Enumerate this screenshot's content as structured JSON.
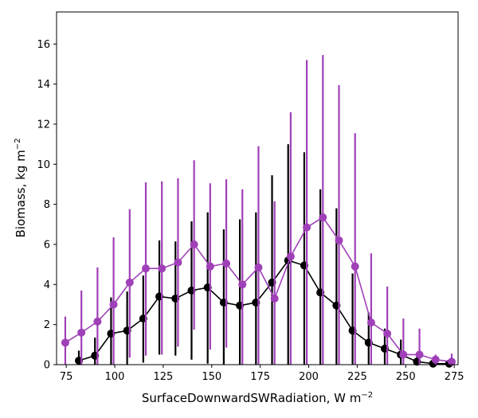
{
  "chart_data": {
    "type": "line",
    "xlabel": "SurfaceDownwardSWRadiation,  W m",
    "xlabel_superscript": "−2",
    "ylabel": "Biomass,  kg m",
    "ylabel_superscript": "−2",
    "xlim": [
      70,
      277
    ],
    "ylim": [
      0,
      17.6
    ],
    "xticks": [
      75,
      100,
      125,
      150,
      175,
      200,
      225,
      250,
      275
    ],
    "yticks": [
      0,
      2,
      4,
      6,
      8,
      10,
      12,
      14,
      16
    ],
    "grid": false,
    "legend": "none",
    "series": [
      {
        "color": "#000000",
        "marker": "circle",
        "x": [
          81.5,
          89.8,
          98.1,
          106.4,
          114.7,
          123.0,
          131.3,
          139.6,
          147.9,
          156.2,
          164.5,
          172.8,
          181.1,
          189.4,
          197.7,
          206.0,
          214.3,
          222.6,
          230.9,
          239.2,
          247.5,
          255.8,
          264.1,
          272.4
        ],
        "y": [
          0.2,
          0.45,
          1.55,
          1.7,
          2.3,
          3.4,
          3.3,
          3.7,
          3.85,
          3.1,
          2.95,
          3.1,
          4.1,
          5.2,
          4.95,
          3.6,
          2.95,
          1.7,
          1.1,
          0.8,
          0.5,
          0.15,
          0.05,
          0.05
        ],
        "err_low": [
          0.0,
          0.0,
          0.0,
          0.0,
          0.1,
          0.5,
          0.45,
          0.25,
          0.05,
          0.0,
          0.0,
          0.0,
          0.0,
          0.0,
          0.0,
          0.0,
          0.0,
          0.0,
          0.0,
          0.0,
          0.0,
          0.0,
          0.0,
          0.0
        ],
        "err_high": [
          0.7,
          1.35,
          3.35,
          3.65,
          4.45,
          6.2,
          6.15,
          7.15,
          7.6,
          6.75,
          7.25,
          7.6,
          9.45,
          11.0,
          10.6,
          8.75,
          7.8,
          4.55,
          2.6,
          1.8,
          1.25,
          0.45,
          0.25,
          0.15
        ]
      },
      {
        "color": "#a040b8",
        "marker": "circle",
        "x": [
          74.5,
          82.8,
          91.1,
          99.4,
          107.7,
          116.0,
          124.3,
          132.6,
          140.9,
          149.2,
          157.5,
          165.8,
          174.1,
          182.4,
          190.7,
          199.0,
          207.3,
          215.6,
          223.9,
          232.2,
          240.5,
          248.8,
          257.1,
          265.4,
          273.7
        ],
        "y": [
          1.1,
          1.6,
          2.15,
          3.0,
          4.1,
          4.8,
          4.8,
          5.1,
          6.0,
          4.9,
          5.05,
          4.0,
          4.85,
          3.3,
          5.4,
          6.85,
          7.35,
          6.2,
          4.9,
          2.1,
          1.55,
          0.5,
          0.5,
          0.25,
          0.15
        ],
        "err_low": [
          0.0,
          0.0,
          0.0,
          0.0,
          0.35,
          0.45,
          0.5,
          0.9,
          1.75,
          0.75,
          0.85,
          0.0,
          0.0,
          0.0,
          0.0,
          0.0,
          0.0,
          0.0,
          0.0,
          0.0,
          0.0,
          0.0,
          0.0,
          0.0,
          0.0
        ],
        "err_high": [
          2.4,
          3.7,
          4.85,
          6.35,
          7.75,
          9.1,
          9.15,
          9.3,
          10.2,
          9.05,
          9.25,
          8.75,
          10.9,
          8.15,
          12.6,
          15.2,
          15.45,
          13.95,
          11.55,
          5.55,
          3.9,
          2.3,
          1.8,
          0.5,
          0.55
        ]
      }
    ]
  }
}
